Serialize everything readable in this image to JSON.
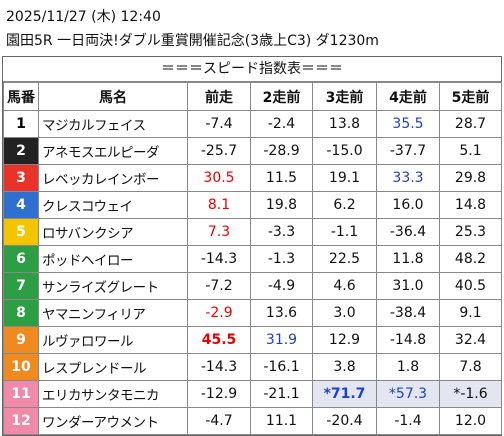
{
  "header": {
    "datetime": "2025/11/27 (木) 12:40",
    "race": "園田5R 一日両決!ダブル重賞開催記念(3歳上C3) ダ1230m"
  },
  "table": {
    "title": "＝＝＝スピード指数表＝＝＝",
    "columns": [
      "馬番",
      "馬名",
      "前走",
      "2走前",
      "3走前",
      "4走前",
      "5走前"
    ],
    "rows": [
      [
        "1",
        "マジカルフェイス",
        "-7.4",
        "-2.4",
        "13.8",
        "35.5",
        "28.7"
      ],
      [
        "2",
        "アネモスエルピーダ",
        "-25.7",
        "-28.9",
        "-15.0",
        "-37.7",
        "5.1"
      ],
      [
        "3",
        "レベッカレインボー",
        "30.5",
        "11.5",
        "19.1",
        "33.3",
        "29.8"
      ],
      [
        "4",
        "クレスコウェイ",
        "8.1",
        "19.8",
        "6.2",
        "16.0",
        "14.8"
      ],
      [
        "5",
        "ロサバンクシア",
        "7.3",
        "-3.3",
        "-1.1",
        "-36.4",
        "25.3"
      ],
      [
        "6",
        "ポッドヘイロー",
        "-14.3",
        "-1.3",
        "22.5",
        "11.8",
        "48.2"
      ],
      [
        "7",
        "サンライズグレート",
        "-7.2",
        "-4.9",
        "4.6",
        "31.0",
        "40.5"
      ],
      [
        "8",
        "ヤマニンフィリア",
        "-2.9",
        "13.6",
        "3.0",
        "-38.4",
        "9.1"
      ],
      [
        "9",
        "ルヴァロワール",
        "45.5",
        "31.9",
        "12.9",
        "-14.8",
        "32.4"
      ],
      [
        "10",
        "レスプレンドール",
        "-14.3",
        "-16.1",
        "3.8",
        "1.8",
        "7.8"
      ],
      [
        "11",
        "エリカサンタモニカ",
        "-12.9",
        "-21.1",
        "*71.7",
        "*57.3",
        "*-1.6"
      ],
      [
        "12",
        "ワンダーアウメント",
        "-4.7",
        "11.1",
        "-20.4",
        "-1.4",
        "12.0"
      ]
    ]
  }
}
